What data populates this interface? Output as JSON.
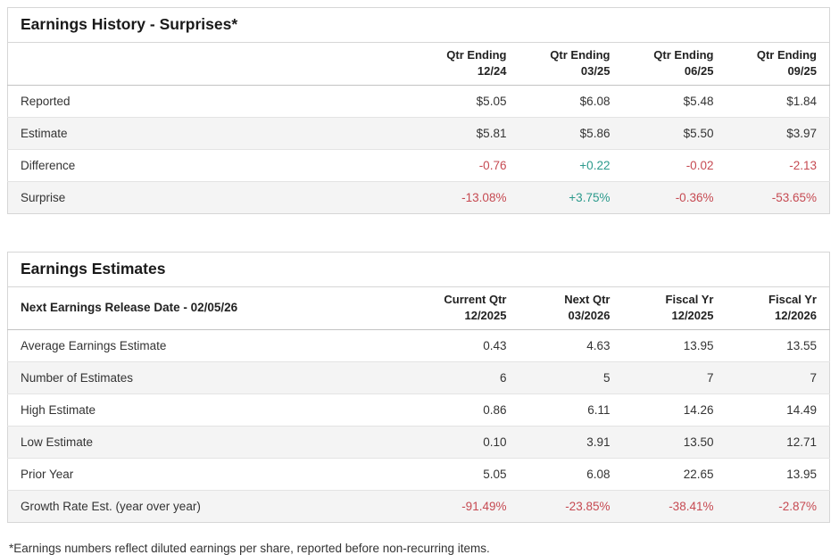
{
  "colors": {
    "negative": "#c64a52",
    "positive": "#2c9a8c",
    "text": "#333333",
    "heading": "#1a1a1a",
    "row_alt_background": "#f4f4f4",
    "border": "#d6d6d6"
  },
  "surprises_table": {
    "title": "Earnings History - Surprises*",
    "column_headers": [
      {
        "line1": "Qtr Ending",
        "line2": "12/24"
      },
      {
        "line1": "Qtr Ending",
        "line2": "03/25"
      },
      {
        "line1": "Qtr Ending",
        "line2": "06/25"
      },
      {
        "line1": "Qtr Ending",
        "line2": "09/25"
      }
    ],
    "rows": [
      {
        "label": "Reported",
        "values": [
          "$5.05",
          "$6.08",
          "$5.48",
          "$1.84"
        ],
        "tones": [
          "normal",
          "normal",
          "normal",
          "normal"
        ]
      },
      {
        "label": "Estimate",
        "values": [
          "$5.81",
          "$5.86",
          "$5.50",
          "$3.97"
        ],
        "tones": [
          "normal",
          "normal",
          "normal",
          "normal"
        ]
      },
      {
        "label": "Difference",
        "values": [
          "-0.76",
          "+0.22",
          "-0.02",
          "-2.13"
        ],
        "tones": [
          "negative",
          "positive",
          "negative",
          "negative"
        ]
      },
      {
        "label": "Surprise",
        "values": [
          "-13.08%",
          "+3.75%",
          "-0.36%",
          "-53.65%"
        ],
        "tones": [
          "negative",
          "positive",
          "negative",
          "negative"
        ]
      }
    ]
  },
  "estimates_table": {
    "title": "Earnings Estimates",
    "row_header": "Next Earnings Release Date - 02/05/26",
    "column_headers": [
      {
        "line1": "Current Qtr",
        "line2": "12/2025"
      },
      {
        "line1": "Next Qtr",
        "line2": "03/2026"
      },
      {
        "line1": "Fiscal Yr",
        "line2": "12/2025"
      },
      {
        "line1": "Fiscal Yr",
        "line2": "12/2026"
      }
    ],
    "rows": [
      {
        "label": "Average Earnings Estimate",
        "values": [
          "0.43",
          "4.63",
          "13.95",
          "13.55"
        ],
        "tones": [
          "normal",
          "normal",
          "normal",
          "normal"
        ]
      },
      {
        "label": "Number of Estimates",
        "values": [
          "6",
          "5",
          "7",
          "7"
        ],
        "tones": [
          "normal",
          "normal",
          "normal",
          "normal"
        ]
      },
      {
        "label": "High Estimate",
        "values": [
          "0.86",
          "6.11",
          "14.26",
          "14.49"
        ],
        "tones": [
          "normal",
          "normal",
          "normal",
          "normal"
        ]
      },
      {
        "label": "Low Estimate",
        "values": [
          "0.10",
          "3.91",
          "13.50",
          "12.71"
        ],
        "tones": [
          "normal",
          "normal",
          "normal",
          "normal"
        ]
      },
      {
        "label": "Prior Year",
        "values": [
          "5.05",
          "6.08",
          "22.65",
          "13.95"
        ],
        "tones": [
          "normal",
          "normal",
          "normal",
          "normal"
        ]
      },
      {
        "label": "Growth Rate Est. (year over year)",
        "values": [
          "-91.49%",
          "-23.85%",
          "-38.41%",
          "-2.87%"
        ],
        "tones": [
          "negative",
          "negative",
          "negative",
          "negative"
        ]
      }
    ]
  },
  "footnote": "*Earnings numbers reflect diluted earnings per share, reported before non-recurring items."
}
